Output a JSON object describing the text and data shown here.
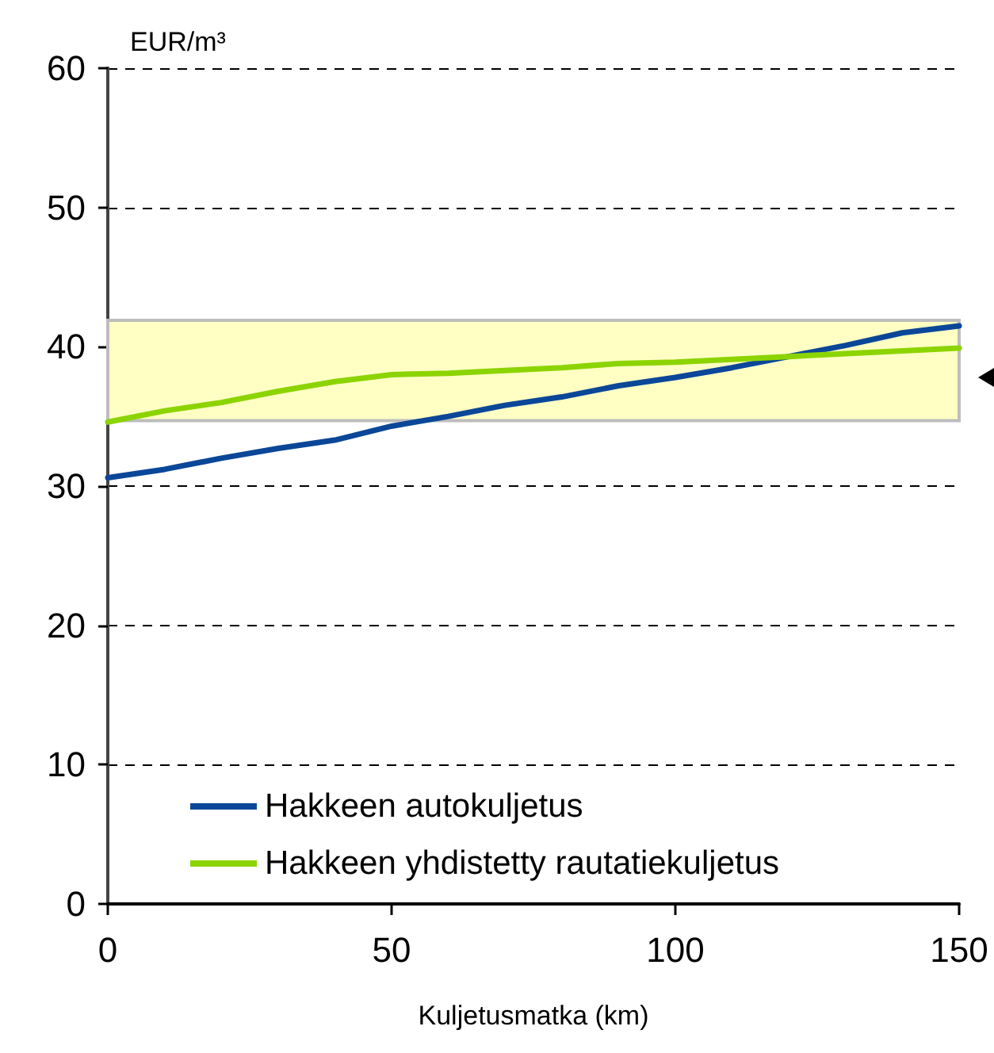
{
  "chart_data": {
    "type": "line",
    "xlabel": "Kuljetusmatka (km)",
    "ylabel": "EUR/m³",
    "x": [
      0,
      10,
      20,
      30,
      40,
      50,
      60,
      70,
      80,
      90,
      100,
      110,
      120,
      130,
      140,
      150
    ],
    "series": [
      {
        "name": "Hakkeen autokuljetus",
        "color": "#0b4798",
        "values": [
          30.6,
          31.2,
          32.0,
          32.7,
          33.3,
          34.3,
          35.0,
          35.8,
          36.4,
          37.2,
          37.8,
          38.5,
          39.3,
          40.1,
          41.0,
          41.5
        ]
      },
      {
        "name": "Hakkeen yhdistetty rautatiekuljetus",
        "color": "#8cd400",
        "values": [
          34.6,
          35.4,
          36.0,
          36.8,
          37.5,
          38.0,
          38.1,
          38.3,
          38.5,
          38.8,
          38.9,
          39.1,
          39.3,
          39.5,
          39.7,
          39.9
        ]
      }
    ],
    "xlim": [
      0,
      150
    ],
    "xticks": [
      0,
      50,
      100,
      150
    ],
    "ylim": [
      0,
      60
    ],
    "yticks": [
      0,
      10,
      20,
      30,
      40,
      50,
      60
    ],
    "bands": [
      {
        "axis": "y",
        "from": 34.7,
        "to": 41.9,
        "color": "#ffffc4"
      }
    ],
    "grid": "y",
    "legend": "bottom left",
    "marker": "none",
    "line_style": "solid"
  }
}
